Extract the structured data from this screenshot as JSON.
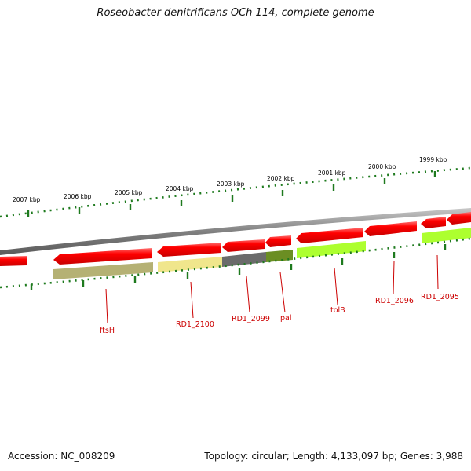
{
  "title": "Roseobacter denitrificans OCh 114, complete genome",
  "footer": {
    "accession": "Accession: NC_008209",
    "summary": "Topology: circular; Length: 4,133,097 bp; Genes: 3,988"
  },
  "scale_labels": [
    "2007 kbp",
    "2006 kbp",
    "2005 kbp",
    "2004 kbp",
    "2003 kbp",
    "2002 kbp",
    "2001 kbp",
    "2000 kbp",
    "1999 kbp"
  ],
  "gene_labels": [
    "ftsH",
    "RD1_2100",
    "RD1_2099",
    "pal",
    "tolB",
    "RD1_2096",
    "RD1_2095"
  ],
  "colors": {
    "backbone": "#808080",
    "cds": "#ff0000",
    "ftsH_feature": "#b5b174",
    "rd1_2100_feature": "#f0e68c",
    "rd1_2099_feature": "#6b6b6b",
    "pal_feature": "#6b8e23",
    "tolB_feature": "#adff2f",
    "rd1_2095_feature": "#adff2f",
    "tick": "#006400",
    "gene_label": "#cc0000"
  }
}
